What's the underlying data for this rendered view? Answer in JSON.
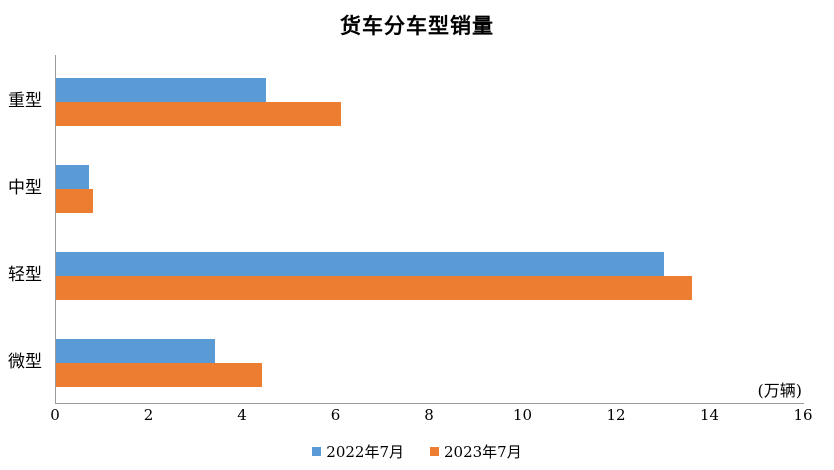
{
  "title": "货车分车型销量",
  "unit_label": "(万辆)",
  "legend": {
    "item1": "2022年7月",
    "item2": "2023年7月"
  },
  "chart_data": {
    "type": "bar",
    "orientation": "horizontal",
    "title": "货车分车型销量",
    "categories": [
      "重型",
      "中型",
      "轻型",
      "微型"
    ],
    "series": [
      {
        "name": "2022年7月",
        "color": "#5B9BD5",
        "values": [
          4.5,
          0.7,
          13.0,
          3.4
        ]
      },
      {
        "name": "2023年7月",
        "color": "#ED7D31",
        "values": [
          6.1,
          0.8,
          13.6,
          4.4
        ]
      }
    ],
    "xlim": [
      0,
      16
    ],
    "x_ticks": [
      0,
      2,
      4,
      6,
      8,
      10,
      12,
      14,
      16
    ],
    "xlabel": "",
    "ylabel": "",
    "unit": "(万辆)",
    "axis_color": "#9a9a9a",
    "grid": false,
    "legend_position": "bottom"
  }
}
